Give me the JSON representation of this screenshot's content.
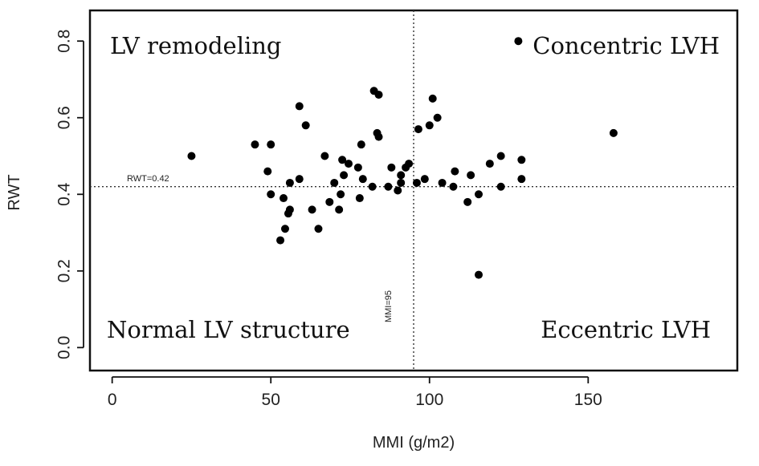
{
  "chart_data": {
    "type": "scatter",
    "title": "",
    "xlabel": "MMI (g/m2)",
    "ylabel": "RWT",
    "xlim": [
      -7,
      197
    ],
    "ylim": [
      -0.06,
      0.88
    ],
    "xticks": [
      0,
      50,
      100,
      150
    ],
    "yticks": [
      0.0,
      0.2,
      0.4,
      0.6,
      0.8
    ],
    "xtick_labels": [
      "0",
      "50",
      "100",
      "150"
    ],
    "ytick_labels": [
      "0.0",
      "0.2",
      "0.4",
      "0.6",
      "0.8"
    ],
    "grid": false,
    "reference_lines": {
      "horizontal": {
        "value": 0.42,
        "label": "RWT=0.42"
      },
      "vertical": {
        "value": 95,
        "label": "MMI=95"
      }
    },
    "quadrant_labels": {
      "top_left": "LV remodeling",
      "top_right": "Concentric LVH",
      "bottom_left": "Normal LV structure",
      "bottom_right": "Eccentric LVH"
    },
    "points": [
      [
        25,
        0.5
      ],
      [
        45,
        0.53
      ],
      [
        49,
        0.46
      ],
      [
        50,
        0.53
      ],
      [
        50,
        0.4
      ],
      [
        53,
        0.28
      ],
      [
        54,
        0.39
      ],
      [
        54.5,
        0.31
      ],
      [
        55.5,
        0.35
      ],
      [
        56,
        0.36
      ],
      [
        56,
        0.43
      ],
      [
        59,
        0.44
      ],
      [
        59,
        0.63
      ],
      [
        61,
        0.58
      ],
      [
        63,
        0.36
      ],
      [
        65,
        0.31
      ],
      [
        67,
        0.5
      ],
      [
        68.5,
        0.38
      ],
      [
        70,
        0.43
      ],
      [
        71.5,
        0.36
      ],
      [
        72,
        0.4
      ],
      [
        72.5,
        0.49
      ],
      [
        73,
        0.45
      ],
      [
        74.5,
        0.48
      ],
      [
        77.5,
        0.47
      ],
      [
        78,
        0.39
      ],
      [
        78.5,
        0.53
      ],
      [
        79,
        0.44
      ],
      [
        82,
        0.42
      ],
      [
        82.5,
        0.67
      ],
      [
        83.5,
        0.56
      ],
      [
        84,
        0.55
      ],
      [
        84,
        0.66
      ],
      [
        87,
        0.42
      ],
      [
        88,
        0.47
      ],
      [
        90,
        0.41
      ],
      [
        91,
        0.43
      ],
      [
        91,
        0.45
      ],
      [
        92.5,
        0.47
      ],
      [
        93.5,
        0.48
      ],
      [
        96,
        0.43
      ],
      [
        96.5,
        0.57
      ],
      [
        98.5,
        0.44
      ],
      [
        100,
        0.58
      ],
      [
        101,
        0.65
      ],
      [
        102.5,
        0.6
      ],
      [
        104,
        0.43
      ],
      [
        107.5,
        0.42
      ],
      [
        108,
        0.46
      ],
      [
        112,
        0.38
      ],
      [
        113,
        0.45
      ],
      [
        115.5,
        0.19
      ],
      [
        115.5,
        0.4
      ],
      [
        119,
        0.48
      ],
      [
        122.5,
        0.42
      ],
      [
        122.5,
        0.5
      ],
      [
        128,
        0.8
      ],
      [
        129,
        0.44
      ],
      [
        129,
        0.49
      ],
      [
        158,
        0.56
      ]
    ]
  }
}
